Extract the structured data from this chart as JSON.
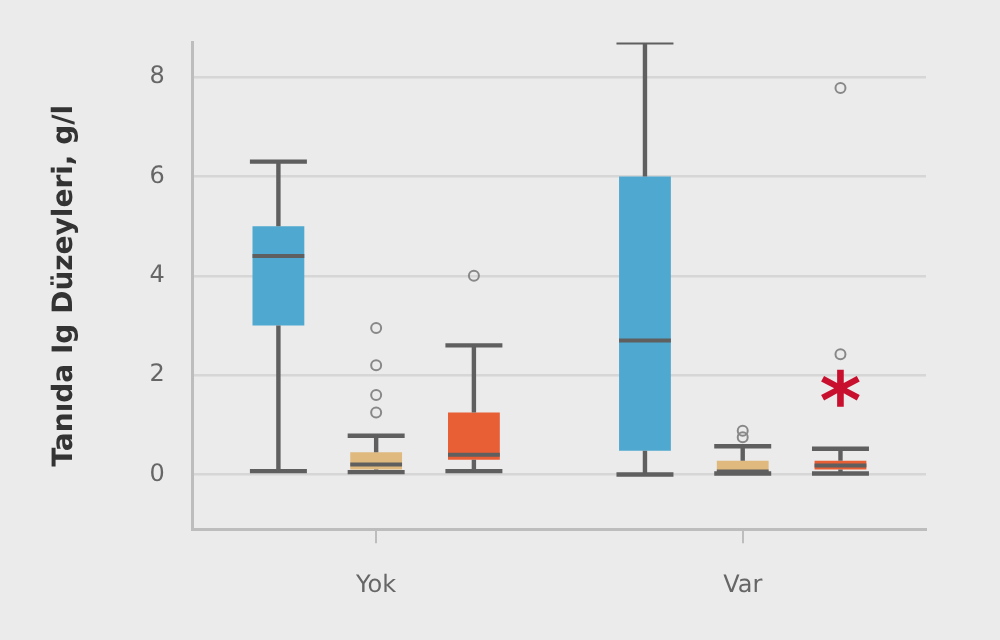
{
  "chart_data": {
    "type": "box",
    "ylabel": "Tanıda Ig Düzeyleri, g/l",
    "categories": [
      "Yok",
      "Var"
    ],
    "ylim": [
      -1.1,
      8.7
    ],
    "yticks": [
      0,
      2,
      4,
      6,
      8
    ],
    "grid": "y",
    "legend": false,
    "series": [
      {
        "color": "#4fa8cf",
        "boxes": [
          {
            "low": 0.07,
            "q1": 3.0,
            "median": 4.4,
            "q3": 5.0,
            "high": 6.3
          },
          {
            "low": 0,
            "q1": 0.48,
            "median": 2.7,
            "q3": 6.0,
            "high": 8.7
          }
        ]
      },
      {
        "color": "#e0b97f",
        "boxes": [
          {
            "low": 0.05,
            "q1": 0.1,
            "median": 0.2,
            "q3": 0.45,
            "high": 0.78,
            "outliers": [
              1.25,
              1.6,
              2.2,
              2.95
            ]
          },
          {
            "low": 0.02,
            "q1": 0.05,
            "median": 0.06,
            "q3": 0.28,
            "high": 0.57,
            "outliers": [
              0.75,
              0.88
            ]
          }
        ]
      },
      {
        "color": "#e85e35",
        "boxes": [
          {
            "low": 0.07,
            "q1": 0.3,
            "median": 0.4,
            "q3": 1.25,
            "high": 2.6,
            "outliers": [
              4.0
            ]
          },
          {
            "low": 0.02,
            "q1": 0.1,
            "median": 0.18,
            "q3": 0.28,
            "high": 0.52,
            "outliers": [
              2.42,
              7.78
            ]
          }
        ]
      }
    ],
    "annotations": [
      "*"
    ]
  }
}
